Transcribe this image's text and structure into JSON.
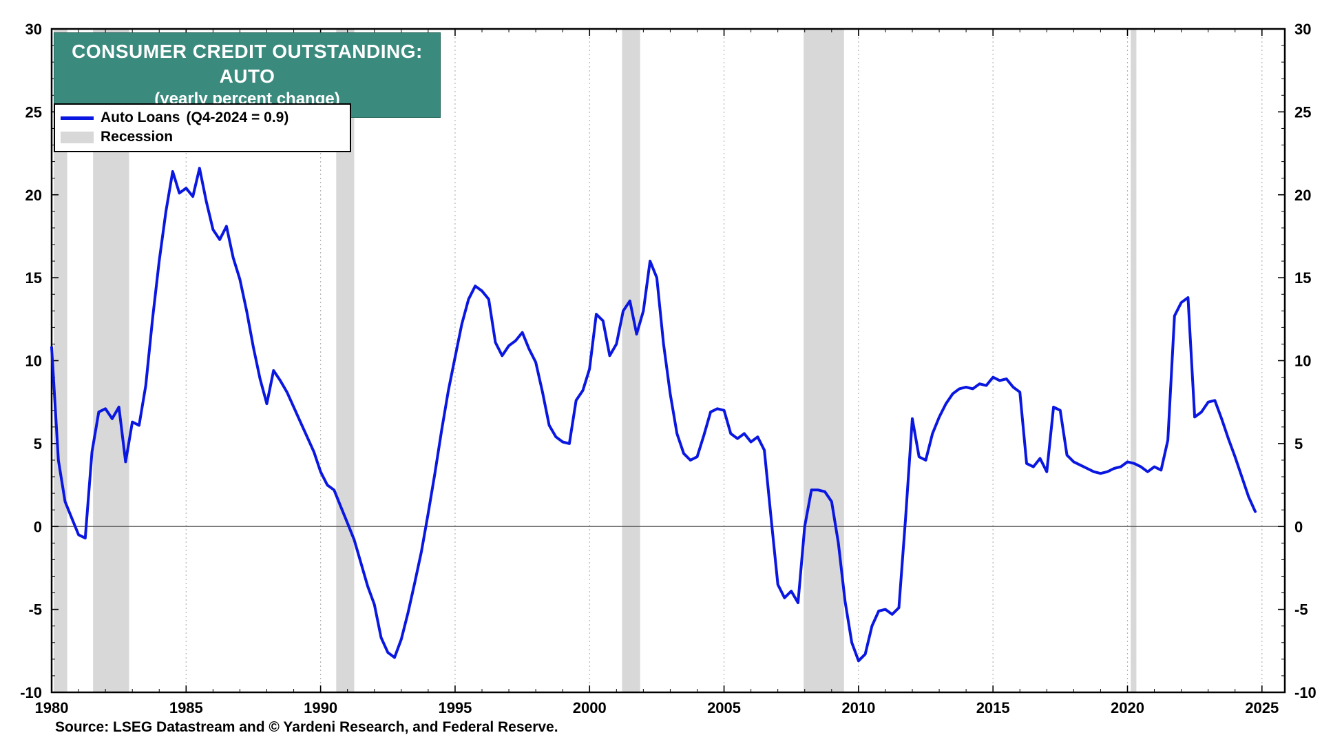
{
  "title": {
    "line1": "CONSUMER CREDIT OUTSTANDING: AUTO",
    "line2": "(yearly percent change)"
  },
  "legend": {
    "series_label": "Auto Loans",
    "series_note": "(Q4-2024 = 0.9)",
    "recession_label": "Recession"
  },
  "source": "Source: LSEG Datastream and © Yardeni Research, and Federal Reserve.",
  "colors": {
    "line": "#0a17e0",
    "recession": "#d8d8d8",
    "title_bg": "#3a8a7d",
    "title_text": "#ffffff",
    "grid": "#b3b3b3",
    "zero_line": "#555555",
    "frame": "#000000"
  },
  "chart_data": {
    "type": "line",
    "title": "CONSUMER CREDIT OUTSTANDING: AUTO (yearly percent change)",
    "xlabel": "",
    "ylabel": "yearly percent change",
    "xlim": [
      1980,
      2025.85
    ],
    "ylim": [
      -10,
      30
    ],
    "x_ticks_major": [
      1980,
      1985,
      1990,
      1995,
      2000,
      2005,
      2010,
      2015,
      2020,
      2025
    ],
    "y_ticks": [
      30,
      25,
      20,
      15,
      10,
      5,
      0,
      -5,
      -10
    ],
    "grid": "vertical-dotted-at-major-x",
    "legend_position": "top-left",
    "last_point_label": "Q4-2024 = 0.9",
    "recessions": [
      [
        1980.08,
        1980.58
      ],
      [
        1981.54,
        1982.88
      ],
      [
        1990.58,
        1991.25
      ],
      [
        2001.21,
        2001.88
      ],
      [
        2007.96,
        2009.46
      ],
      [
        2020.12,
        2020.33
      ]
    ],
    "series": [
      {
        "name": "Auto Loans",
        "points": [
          [
            1980.0,
            10.8
          ],
          [
            1980.25,
            4.0
          ],
          [
            1980.5,
            1.5
          ],
          [
            1980.75,
            0.5
          ],
          [
            1981.0,
            -0.5
          ],
          [
            1981.25,
            -0.7
          ],
          [
            1981.5,
            4.5
          ],
          [
            1981.75,
            6.9
          ],
          [
            1982.0,
            7.1
          ],
          [
            1982.25,
            6.5
          ],
          [
            1982.5,
            7.2
          ],
          [
            1982.75,
            3.9
          ],
          [
            1983.0,
            6.3
          ],
          [
            1983.25,
            6.1
          ],
          [
            1983.5,
            8.5
          ],
          [
            1983.75,
            12.5
          ],
          [
            1984.0,
            16.0
          ],
          [
            1984.25,
            19.0
          ],
          [
            1984.5,
            21.4
          ],
          [
            1984.75,
            20.1
          ],
          [
            1985.0,
            20.4
          ],
          [
            1985.25,
            19.9
          ],
          [
            1985.5,
            21.6
          ],
          [
            1985.75,
            19.6
          ],
          [
            1986.0,
            17.9
          ],
          [
            1986.25,
            17.3
          ],
          [
            1986.5,
            18.1
          ],
          [
            1986.75,
            16.2
          ],
          [
            1987.0,
            14.9
          ],
          [
            1987.25,
            13.0
          ],
          [
            1987.5,
            10.8
          ],
          [
            1987.75,
            8.9
          ],
          [
            1988.0,
            7.4
          ],
          [
            1988.25,
            9.4
          ],
          [
            1988.5,
            8.8
          ],
          [
            1988.75,
            8.1
          ],
          [
            1989.0,
            7.2
          ],
          [
            1989.25,
            6.3
          ],
          [
            1989.5,
            5.4
          ],
          [
            1989.75,
            4.5
          ],
          [
            1990.0,
            3.3
          ],
          [
            1990.25,
            2.5
          ],
          [
            1990.5,
            2.2
          ],
          [
            1990.75,
            1.2
          ],
          [
            1991.0,
            0.2
          ],
          [
            1991.25,
            -0.8
          ],
          [
            1991.5,
            -2.2
          ],
          [
            1991.75,
            -3.6
          ],
          [
            1992.0,
            -4.7
          ],
          [
            1992.25,
            -6.7
          ],
          [
            1992.5,
            -7.6
          ],
          [
            1992.75,
            -7.9
          ],
          [
            1993.0,
            -6.8
          ],
          [
            1993.25,
            -5.2
          ],
          [
            1993.5,
            -3.4
          ],
          [
            1993.75,
            -1.5
          ],
          [
            1994.0,
            0.8
          ],
          [
            1994.25,
            3.2
          ],
          [
            1994.5,
            5.8
          ],
          [
            1994.75,
            8.2
          ],
          [
            1995.0,
            10.2
          ],
          [
            1995.25,
            12.2
          ],
          [
            1995.5,
            13.7
          ],
          [
            1995.75,
            14.5
          ],
          [
            1996.0,
            14.2
          ],
          [
            1996.25,
            13.7
          ],
          [
            1996.5,
            11.1
          ],
          [
            1996.75,
            10.3
          ],
          [
            1997.0,
            10.9
          ],
          [
            1997.25,
            11.2
          ],
          [
            1997.5,
            11.7
          ],
          [
            1997.75,
            10.7
          ],
          [
            1998.0,
            9.9
          ],
          [
            1998.25,
            8.1
          ],
          [
            1998.5,
            6.1
          ],
          [
            1998.75,
            5.4
          ],
          [
            1999.0,
            5.1
          ],
          [
            1999.25,
            5.0
          ],
          [
            1999.5,
            7.6
          ],
          [
            1999.75,
            8.2
          ],
          [
            2000.0,
            9.5
          ],
          [
            2000.25,
            12.8
          ],
          [
            2000.5,
            12.4
          ],
          [
            2000.75,
            10.3
          ],
          [
            2001.0,
            11.0
          ],
          [
            2001.25,
            13.0
          ],
          [
            2001.5,
            13.6
          ],
          [
            2001.75,
            11.6
          ],
          [
            2002.0,
            13.0
          ],
          [
            2002.25,
            16.0
          ],
          [
            2002.5,
            15.0
          ],
          [
            2002.75,
            11.0
          ],
          [
            2003.0,
            8.0
          ],
          [
            2003.25,
            5.6
          ],
          [
            2003.5,
            4.4
          ],
          [
            2003.75,
            4.0
          ],
          [
            2004.0,
            4.2
          ],
          [
            2004.25,
            5.5
          ],
          [
            2004.5,
            6.9
          ],
          [
            2004.75,
            7.1
          ],
          [
            2005.0,
            7.0
          ],
          [
            2005.25,
            5.6
          ],
          [
            2005.5,
            5.3
          ],
          [
            2005.75,
            5.6
          ],
          [
            2006.0,
            5.1
          ],
          [
            2006.25,
            5.4
          ],
          [
            2006.5,
            4.6
          ],
          [
            2006.75,
            0.5
          ],
          [
            2007.0,
            -3.5
          ],
          [
            2007.25,
            -4.3
          ],
          [
            2007.5,
            -3.9
          ],
          [
            2007.75,
            -4.6
          ],
          [
            2008.0,
            0.0
          ],
          [
            2008.25,
            2.2
          ],
          [
            2008.5,
            2.2
          ],
          [
            2008.75,
            2.1
          ],
          [
            2009.0,
            1.5
          ],
          [
            2009.25,
            -1.0
          ],
          [
            2009.5,
            -4.5
          ],
          [
            2009.75,
            -7.0
          ],
          [
            2010.0,
            -8.1
          ],
          [
            2010.25,
            -7.7
          ],
          [
            2010.5,
            -6.0
          ],
          [
            2010.75,
            -5.1
          ],
          [
            2011.0,
            -5.0
          ],
          [
            2011.25,
            -5.3
          ],
          [
            2011.5,
            -4.9
          ],
          [
            2011.75,
            0.5
          ],
          [
            2012.0,
            6.5
          ],
          [
            2012.25,
            4.2
          ],
          [
            2012.5,
            4.0
          ],
          [
            2012.75,
            5.6
          ],
          [
            2013.0,
            6.6
          ],
          [
            2013.25,
            7.4
          ],
          [
            2013.5,
            8.0
          ],
          [
            2013.75,
            8.3
          ],
          [
            2014.0,
            8.4
          ],
          [
            2014.25,
            8.3
          ],
          [
            2014.5,
            8.6
          ],
          [
            2014.75,
            8.5
          ],
          [
            2015.0,
            9.0
          ],
          [
            2015.25,
            8.8
          ],
          [
            2015.5,
            8.9
          ],
          [
            2015.75,
            8.4
          ],
          [
            2016.0,
            8.1
          ],
          [
            2016.25,
            3.8
          ],
          [
            2016.5,
            3.6
          ],
          [
            2016.75,
            4.1
          ],
          [
            2017.0,
            3.3
          ],
          [
            2017.25,
            7.2
          ],
          [
            2017.5,
            7.0
          ],
          [
            2017.75,
            4.3
          ],
          [
            2018.0,
            3.9
          ],
          [
            2018.25,
            3.7
          ],
          [
            2018.5,
            3.5
          ],
          [
            2018.75,
            3.3
          ],
          [
            2019.0,
            3.2
          ],
          [
            2019.25,
            3.3
          ],
          [
            2019.5,
            3.5
          ],
          [
            2019.75,
            3.6
          ],
          [
            2020.0,
            3.9
          ],
          [
            2020.25,
            3.8
          ],
          [
            2020.5,
            3.6
          ],
          [
            2020.75,
            3.3
          ],
          [
            2021.0,
            3.6
          ],
          [
            2021.25,
            3.4
          ],
          [
            2021.5,
            5.2
          ],
          [
            2021.75,
            12.7
          ],
          [
            2022.0,
            13.5
          ],
          [
            2022.25,
            13.8
          ],
          [
            2022.5,
            6.6
          ],
          [
            2022.75,
            6.9
          ],
          [
            2023.0,
            7.5
          ],
          [
            2023.25,
            7.6
          ],
          [
            2023.5,
            6.5
          ],
          [
            2023.75,
            5.3
          ],
          [
            2024.0,
            4.2
          ],
          [
            2024.25,
            3.0
          ],
          [
            2024.5,
            1.8
          ],
          [
            2024.75,
            0.9
          ]
        ]
      }
    ]
  }
}
